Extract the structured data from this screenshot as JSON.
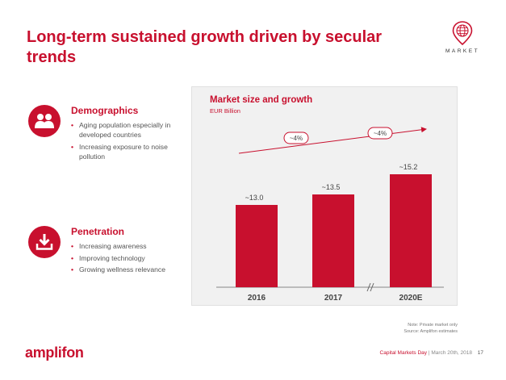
{
  "slide": {
    "title": "Long-term sustained growth driven by secular trends",
    "section_label": "MARKET"
  },
  "drivers": [
    {
      "icon": "people-icon",
      "title": "Demographics",
      "bullets": [
        "Aging population especially in developed countries",
        "Increasing exposure to noise pollution"
      ]
    },
    {
      "icon": "download-tray-icon",
      "title": "Penetration",
      "bullets": [
        "Increasing awareness",
        "Improving technology",
        "Growing wellness relevance"
      ]
    }
  ],
  "chart_data": {
    "type": "bar",
    "title": "Market size and growth",
    "subtitle": "EUR Billion",
    "categories": [
      "2016",
      "2017",
      "2020E"
    ],
    "values": [
      13.0,
      13.5,
      15.2
    ],
    "data_labels": [
      "~13.0",
      "~13.5",
      "~15.2"
    ],
    "growth_annotations": [
      "~4%",
      "~4%"
    ],
    "axis_break_between": [
      "2017",
      "2020E"
    ],
    "ylim": [
      0,
      16
    ],
    "bar_color": "#c8102e",
    "grid": false,
    "legend": "none"
  },
  "notes": {
    "line1": "Note: Private market only",
    "line2": "Source: Amplifon estimates"
  },
  "footer": {
    "logo": "amplifon",
    "event": "Capital Markets Day",
    "date": "March 20th, 2018",
    "page": "17"
  },
  "colors": {
    "accent": "#c8102e"
  }
}
